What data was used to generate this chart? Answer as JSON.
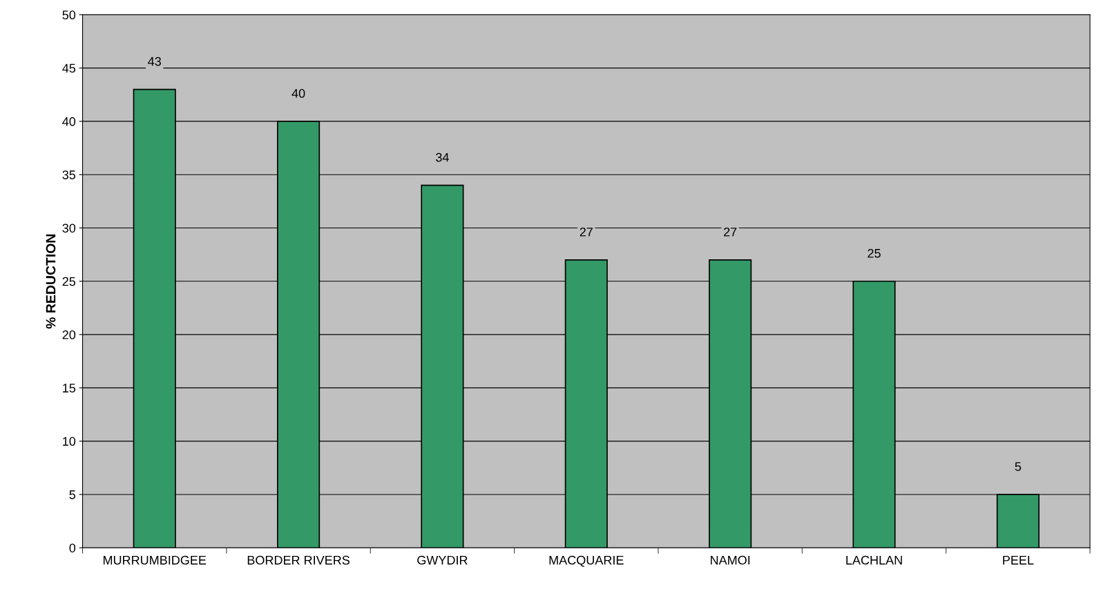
{
  "chart_data": {
    "type": "bar",
    "ylabel": "% REDUCTION",
    "categories": [
      "MURRUMBIDGEE",
      "BORDER RIVERS",
      "GWYDIR",
      "MACQUARIE",
      "NAMOI",
      "LACHLAN",
      "PEEL"
    ],
    "values": [
      43,
      40,
      34,
      27,
      27,
      25,
      5
    ],
    "color": "#339966",
    "ylim": [
      0,
      50
    ],
    "yticks": [
      0,
      5,
      10,
      15,
      20,
      25,
      30,
      35,
      40,
      45,
      50
    ],
    "grid": "y",
    "data_labels": true
  }
}
